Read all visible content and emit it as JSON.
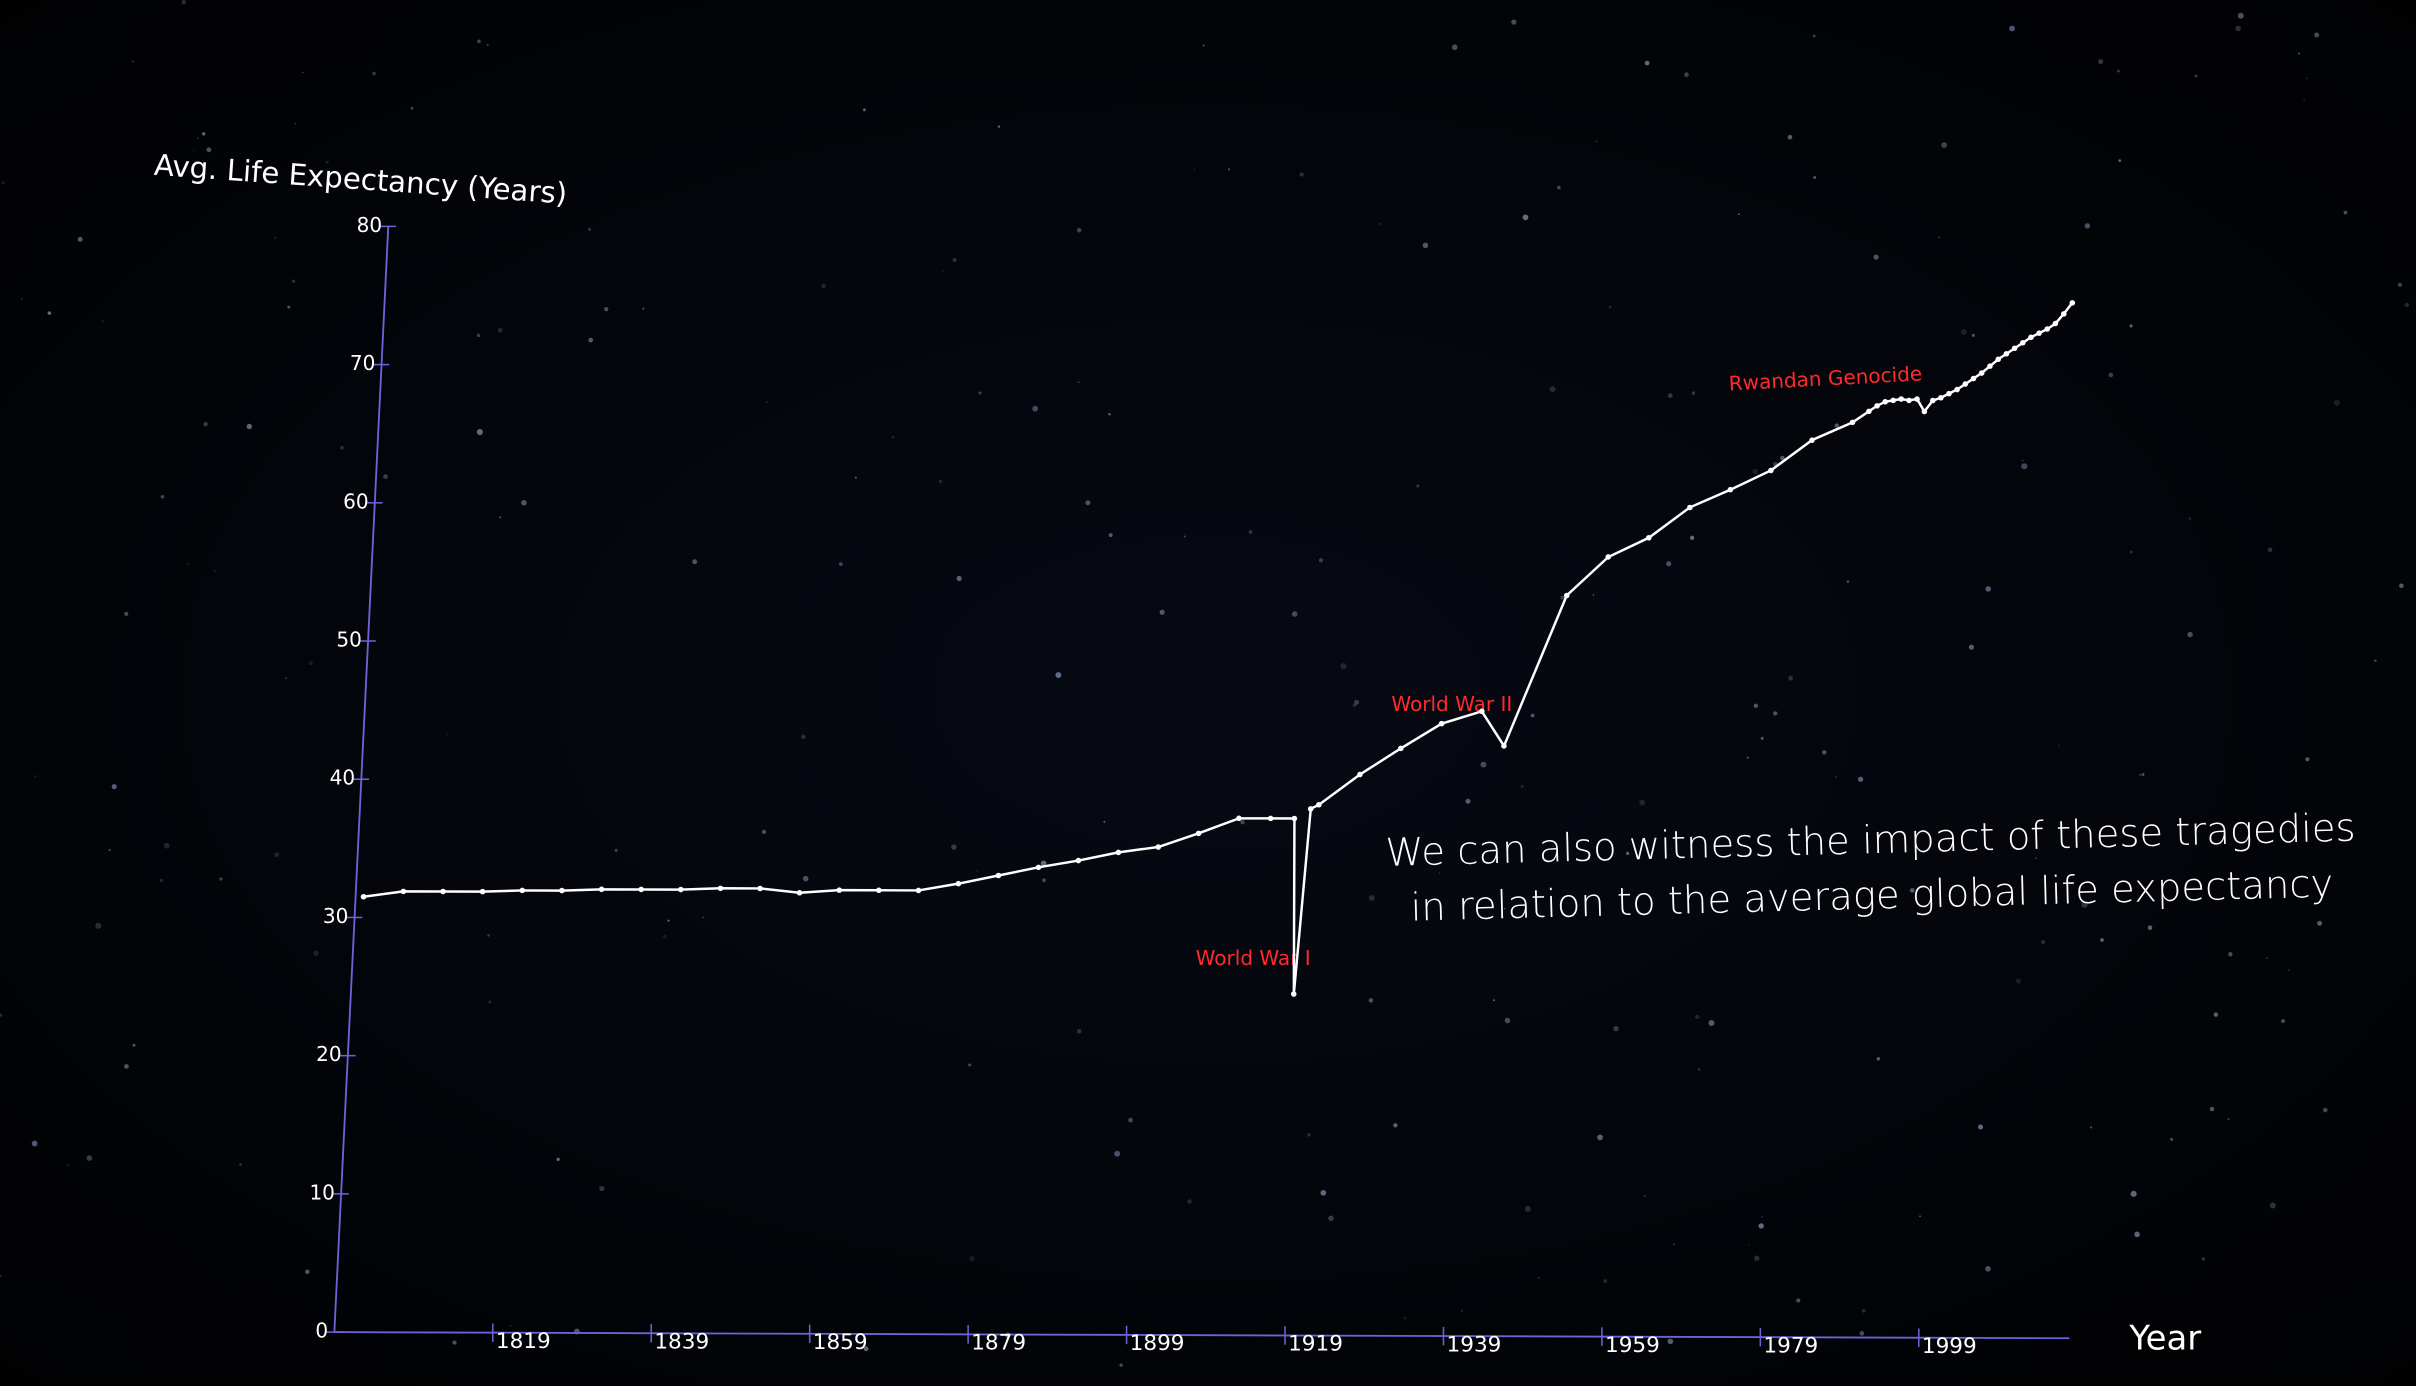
{
  "chart_data": {
    "type": "line",
    "y_label": "Avg. Life Expectancy (Years)",
    "x_label": "Year",
    "x": [
      1800,
      1805,
      1810,
      1815,
      1820,
      1825,
      1830,
      1835,
      1840,
      1845,
      1850,
      1855,
      1860,
      1865,
      1870,
      1875,
      1880,
      1885,
      1890,
      1895,
      1900,
      1905,
      1910,
      1914,
      1917,
      1918,
      1919,
      1920,
      1925,
      1930,
      1935,
      1940,
      1943,
      1950,
      1955,
      1960,
      1965,
      1970,
      1975,
      1980,
      1985,
      1987,
      1988,
      1989,
      1990,
      1991,
      1992,
      1993,
      1994,
      1995,
      1996,
      1997,
      1998,
      1999,
      2000,
      2001,
      2002,
      2003,
      2004,
      2005,
      2006,
      2007,
      2008,
      2009,
      2010,
      2011,
      2012
    ],
    "values": [
      31.5,
      31.9,
      31.9,
      31.9,
      32.0,
      32.0,
      32.1,
      32.1,
      32.1,
      32.2,
      32.2,
      31.9,
      32.1,
      32.1,
      32.1,
      32.6,
      33.2,
      33.8,
      34.3,
      34.9,
      35.3,
      36.3,
      37.4,
      37.4,
      37.4,
      24.7,
      38.1,
      38.4,
      40.6,
      42.5,
      44.3,
      45.2,
      42.7,
      53.6,
      56.4,
      57.8,
      60.0,
      61.3,
      62.7,
      64.9,
      66.2,
      67.0,
      67.4,
      67.7,
      67.8,
      67.9,
      67.8,
      67.9,
      67.0,
      67.8,
      68.0,
      68.3,
      68.6,
      69.0,
      69.4,
      69.8,
      70.3,
      70.8,
      71.2,
      71.6,
      72.0,
      72.4,
      72.7,
      73.0,
      73.4,
      74.1,
      74.9
    ],
    "color": "#ffffff",
    "axis_color": "#6b63d9",
    "xlim": [
      1799,
      2018
    ],
    "ylim": [
      0,
      80
    ],
    "xticks": [
      1819,
      1839,
      1859,
      1879,
      1899,
      1919,
      1939,
      1959,
      1979,
      1999
    ],
    "yticks": [
      0,
      10,
      20,
      30,
      40,
      50,
      60,
      70,
      80
    ],
    "grid": false,
    "annotations": [
      "World War I",
      "World War II",
      "Rwandan Genocide"
    ],
    "caption": "We can also witness the impact of these tragedies in relation to the average global life expectancy"
  }
}
